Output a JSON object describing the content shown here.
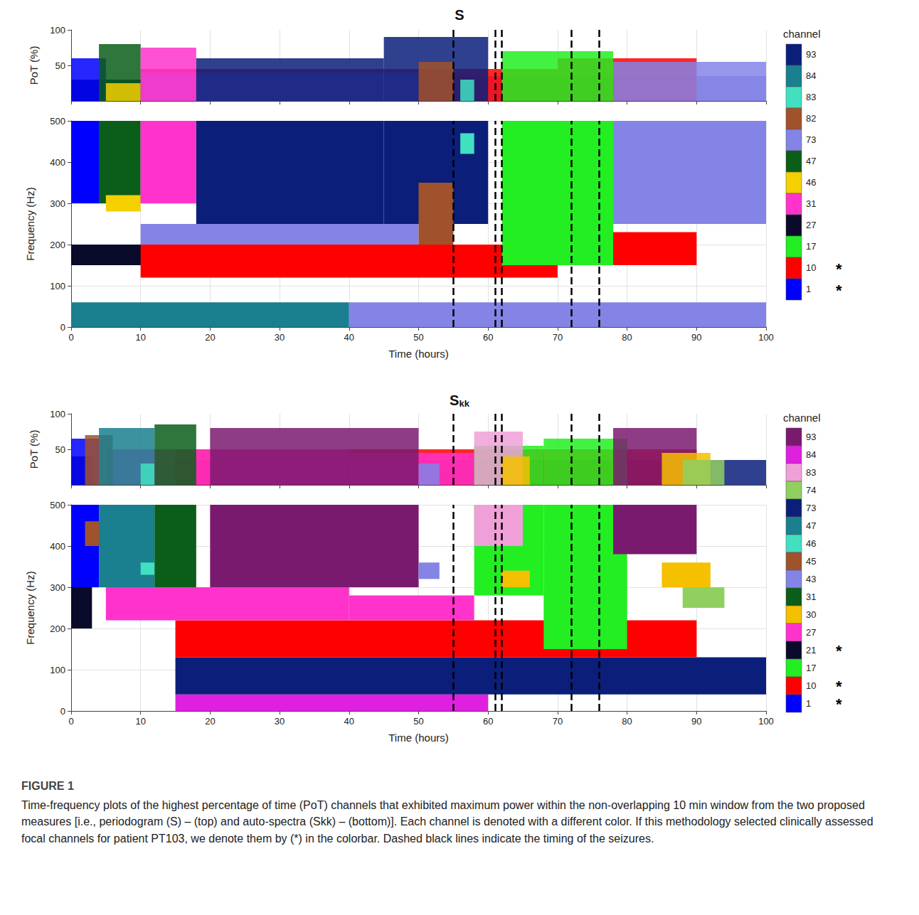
{
  "chart_data": [
    {
      "type": "heatmap",
      "title": "S",
      "xlabel": "Time (hours)",
      "ylabel": "Frequency (Hz)",
      "zlabel": "PoT (%)",
      "xlim": [
        0,
        100
      ],
      "xticks": [
        0,
        10,
        20,
        30,
        40,
        50,
        60,
        70,
        80,
        90,
        100
      ],
      "ylim": [
        0,
        500
      ],
      "yticks": [
        0,
        100,
        200,
        300,
        400,
        500
      ],
      "zlim": [
        0,
        100
      ],
      "zticks": [
        50,
        100
      ],
      "grid": true,
      "colorbar_title": "channel",
      "channels": [
        {
          "name": "93",
          "color": "#0b1f7a"
        },
        {
          "name": "84",
          "color": "#1a7f8e"
        },
        {
          "name": "83",
          "color": "#40e0c0"
        },
        {
          "name": "82",
          "color": "#a0522d"
        },
        {
          "name": "73",
          "color": "#8484e6"
        },
        {
          "name": "47",
          "color": "#0b5e1a"
        },
        {
          "name": "46",
          "color": "#f5d000"
        },
        {
          "name": "31",
          "color": "#ff33cc"
        },
        {
          "name": "27",
          "color": "#0a0a2a"
        },
        {
          "name": "17",
          "color": "#22ee22"
        },
        {
          "name": "10",
          "color": "#ff0000",
          "mark": "*"
        },
        {
          "name": "1",
          "color": "#0000ff",
          "mark": "*"
        }
      ],
      "seizures": [
        55,
        61,
        62,
        72,
        76
      ],
      "segments": [
        {
          "channel": "84",
          "t": [
            0,
            40
          ],
          "f": [
            0,
            60
          ],
          "pot": 30
        },
        {
          "channel": "73",
          "t": [
            40,
            100
          ],
          "f": [
            0,
            60
          ],
          "pot": 35
        },
        {
          "channel": "27",
          "t": [
            0,
            15
          ],
          "f": [
            150,
            200
          ],
          "pot": 30
        },
        {
          "channel": "10",
          "t": [
            10,
            70
          ],
          "f": [
            120,
            200
          ],
          "pot": 45
        },
        {
          "channel": "10",
          "t": [
            70,
            90
          ],
          "f": [
            150,
            230
          ],
          "pot": 60
        },
        {
          "channel": "73",
          "t": [
            10,
            50
          ],
          "f": [
            200,
            250
          ],
          "pot": 40
        },
        {
          "channel": "1",
          "t": [
            0,
            5
          ],
          "f": [
            300,
            500
          ],
          "pot": 60
        },
        {
          "channel": "47",
          "t": [
            4,
            10
          ],
          "f": [
            300,
            500
          ],
          "pot": 80
        },
        {
          "channel": "46",
          "t": [
            5,
            10
          ],
          "f": [
            280,
            320
          ],
          "pot": 25
        },
        {
          "channel": "31",
          "t": [
            10,
            18
          ],
          "f": [
            300,
            500
          ],
          "pot": 75
        },
        {
          "channel": "93",
          "t": [
            18,
            45
          ],
          "f": [
            250,
            500
          ],
          "pot": 60
        },
        {
          "channel": "93",
          "t": [
            45,
            60
          ],
          "f": [
            250,
            500
          ],
          "pot": 90
        },
        {
          "channel": "82",
          "t": [
            50,
            55
          ],
          "f": [
            200,
            350
          ],
          "pot": 55
        },
        {
          "channel": "83",
          "t": [
            56,
            58
          ],
          "f": [
            420,
            470
          ],
          "pot": 30
        },
        {
          "channel": "17",
          "t": [
            62,
            78
          ],
          "f": [
            150,
            500
          ],
          "pot": 70
        },
        {
          "channel": "73",
          "t": [
            78,
            100
          ],
          "f": [
            250,
            500
          ],
          "pot": 55
        }
      ]
    },
    {
      "type": "heatmap",
      "title": "S",
      "title_subscript": "kk",
      "xlabel": "Time (hours)",
      "ylabel": "Frequency (Hz)",
      "zlabel": "PoT (%)",
      "xlim": [
        0,
        100
      ],
      "xticks": [
        0,
        10,
        20,
        30,
        40,
        50,
        60,
        70,
        80,
        90,
        100
      ],
      "ylim": [
        0,
        500
      ],
      "yticks": [
        0,
        100,
        200,
        300,
        400,
        500
      ],
      "zlim": [
        0,
        100
      ],
      "zticks": [
        50,
        100
      ],
      "grid": true,
      "colorbar_title": "channel",
      "channels": [
        {
          "name": "93",
          "color": "#7a1a6e"
        },
        {
          "name": "84",
          "color": "#e020e0"
        },
        {
          "name": "83",
          "color": "#f0a0d8"
        },
        {
          "name": "74",
          "color": "#90d060"
        },
        {
          "name": "73",
          "color": "#0b1f7a"
        },
        {
          "name": "47",
          "color": "#1a7f8e"
        },
        {
          "name": "46",
          "color": "#40e0c0"
        },
        {
          "name": "45",
          "color": "#a0522d"
        },
        {
          "name": "43",
          "color": "#8484e6"
        },
        {
          "name": "31",
          "color": "#0b5e1a"
        },
        {
          "name": "30",
          "color": "#f5c000"
        },
        {
          "name": "27",
          "color": "#ff33cc"
        },
        {
          "name": "21",
          "color": "#0a0a2a",
          "mark": "*"
        },
        {
          "name": "17",
          "color": "#22ee22"
        },
        {
          "name": "10",
          "color": "#ff0000",
          "mark": "*"
        },
        {
          "name": "1",
          "color": "#0000ff",
          "mark": "*"
        }
      ],
      "seizures": [
        55,
        61,
        62,
        72,
        76
      ],
      "segments": [
        {
          "channel": "84",
          "t": [
            15,
            60
          ],
          "f": [
            0,
            40
          ],
          "pot": 25
        },
        {
          "channel": "73",
          "t": [
            15,
            100
          ],
          "f": [
            40,
            130
          ],
          "pot": 35
        },
        {
          "channel": "10",
          "t": [
            15,
            90
          ],
          "f": [
            130,
            220
          ],
          "pot": 50
        },
        {
          "channel": "21",
          "t": [
            0,
            3
          ],
          "f": [
            200,
            300
          ],
          "pot": 40
        },
        {
          "channel": "27",
          "t": [
            5,
            40
          ],
          "f": [
            220,
            300
          ],
          "pot": 50
        },
        {
          "channel": "27",
          "t": [
            40,
            58
          ],
          "f": [
            220,
            280
          ],
          "pot": 45
        },
        {
          "channel": "1",
          "t": [
            0,
            4
          ],
          "f": [
            300,
            500
          ],
          "pot": 65
        },
        {
          "channel": "45",
          "t": [
            2,
            6
          ],
          "f": [
            400,
            460
          ],
          "pot": 70
        },
        {
          "channel": "47",
          "t": [
            4,
            12
          ],
          "f": [
            300,
            500
          ],
          "pot": 80
        },
        {
          "channel": "46",
          "t": [
            10,
            12
          ],
          "f": [
            330,
            360
          ],
          "pot": 30
        },
        {
          "channel": "31",
          "t": [
            12,
            18
          ],
          "f": [
            300,
            500
          ],
          "pot": 85
        },
        {
          "channel": "93",
          "t": [
            20,
            50
          ],
          "f": [
            300,
            500
          ],
          "pot": 80
        },
        {
          "channel": "43",
          "t": [
            50,
            53
          ],
          "f": [
            320,
            360
          ],
          "pot": 30
        },
        {
          "channel": "17",
          "t": [
            58,
            68
          ],
          "f": [
            280,
            500
          ],
          "pot": 55
        },
        {
          "channel": "83",
          "t": [
            58,
            65
          ],
          "f": [
            400,
            500
          ],
          "pot": 75
        },
        {
          "channel": "30",
          "t": [
            62,
            66
          ],
          "f": [
            300,
            340
          ],
          "pot": 40
        },
        {
          "channel": "17",
          "t": [
            68,
            80
          ],
          "f": [
            150,
            500
          ],
          "pot": 65
        },
        {
          "channel": "93",
          "t": [
            78,
            90
          ],
          "f": [
            380,
            500
          ],
          "pot": 80
        },
        {
          "channel": "30",
          "t": [
            85,
            92
          ],
          "f": [
            300,
            360
          ],
          "pot": 45
        },
        {
          "channel": "74",
          "t": [
            88,
            94
          ],
          "f": [
            250,
            300
          ],
          "pot": 35
        }
      ]
    }
  ],
  "caption": {
    "label": "FIGURE 1",
    "text": "Time-frequency plots of the highest percentage of time (PoT) channels that exhibited maximum power within the non-overlapping 10 min window from the two proposed measures [i.e., periodogram (S) – (top) and auto-spectra (Skk) – (bottom)]. Each channel is denoted with a different color. If this methodology selected clinically assessed focal channels for patient PT103, we denote them by (*) in the colorbar. Dashed black lines indicate the timing of the seizures."
  }
}
